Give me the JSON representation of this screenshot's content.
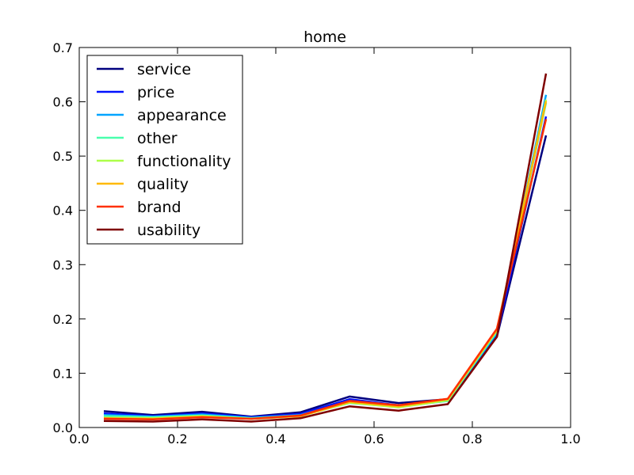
{
  "chart_data": {
    "type": "line",
    "title": "home",
    "xlabel": "",
    "ylabel": "",
    "xlim": [
      0.0,
      1.0
    ],
    "ylim": [
      0.0,
      0.7
    ],
    "x_ticks": [
      "0.0",
      "0.2",
      "0.4",
      "0.6",
      "0.8",
      "1.0"
    ],
    "y_ticks": [
      "0.0",
      "0.1",
      "0.2",
      "0.3",
      "0.4",
      "0.5",
      "0.6",
      "0.7"
    ],
    "legend_position": "top-left",
    "grid": false,
    "x": [
      0.05,
      0.15,
      0.25,
      0.35,
      0.45,
      0.55,
      0.65,
      0.75,
      0.85,
      0.95
    ],
    "series": [
      {
        "name": "service",
        "color": "#00007f",
        "values": [
          0.03,
          0.023,
          0.029,
          0.02,
          0.028,
          0.057,
          0.045,
          0.052,
          0.167,
          0.538
        ]
      },
      {
        "name": "price",
        "color": "#0010ff",
        "values": [
          0.026,
          0.021,
          0.026,
          0.019,
          0.025,
          0.052,
          0.041,
          0.05,
          0.17,
          0.573
        ]
      },
      {
        "name": "appearance",
        "color": "#00a4ff",
        "values": [
          0.023,
          0.02,
          0.024,
          0.018,
          0.023,
          0.047,
          0.039,
          0.049,
          0.174,
          0.613
        ]
      },
      {
        "name": "other",
        "color": "#49ffad",
        "values": [
          0.021,
          0.019,
          0.022,
          0.017,
          0.022,
          0.045,
          0.038,
          0.049,
          0.177,
          0.598
        ]
      },
      {
        "name": "functionality",
        "color": "#adff49",
        "values": [
          0.018,
          0.017,
          0.021,
          0.016,
          0.021,
          0.046,
          0.037,
          0.05,
          0.179,
          0.604
        ]
      },
      {
        "name": "quality",
        "color": "#ffb900",
        "values": [
          0.017,
          0.016,
          0.02,
          0.016,
          0.021,
          0.047,
          0.039,
          0.052,
          0.18,
          0.601
        ]
      },
      {
        "name": "brand",
        "color": "#ff3000",
        "values": [
          0.016,
          0.015,
          0.019,
          0.016,
          0.022,
          0.049,
          0.041,
          0.053,
          0.182,
          0.568
        ]
      },
      {
        "name": "usability",
        "color": "#7f0000",
        "values": [
          0.012,
          0.011,
          0.015,
          0.011,
          0.017,
          0.039,
          0.031,
          0.043,
          0.167,
          0.652
        ]
      }
    ]
  }
}
